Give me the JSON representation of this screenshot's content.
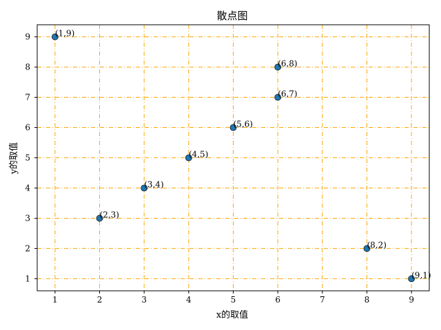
{
  "chart_data": {
    "type": "scatter",
    "title": "散点图",
    "xlabel": "x的取值",
    "ylabel": "y的取值",
    "x": [
      1,
      2,
      3,
      4,
      5,
      6,
      6,
      8,
      9
    ],
    "y": [
      9,
      3,
      4,
      5,
      6,
      8,
      7,
      2,
      1
    ],
    "point_labels": [
      "(1,9)",
      "(2,3)",
      "(3,4)",
      "(4,5)",
      "(5,6)",
      "(6,8)",
      "(6,7)",
      "(8,2)",
      "(9,1)"
    ],
    "xticks": [
      1,
      2,
      3,
      4,
      5,
      6,
      7,
      8,
      9
    ],
    "yticks": [
      1,
      2,
      3,
      4,
      5,
      6,
      7,
      8,
      9
    ],
    "xlim": [
      0.6,
      9.4
    ],
    "ylim": [
      0.6,
      9.4
    ],
    "grid": true,
    "legend": "none",
    "colors": {
      "marker_fill": "#1f77b4",
      "marker_edge": "#1a1a1a",
      "grid": "#ffa500",
      "axes": "#000000"
    }
  }
}
